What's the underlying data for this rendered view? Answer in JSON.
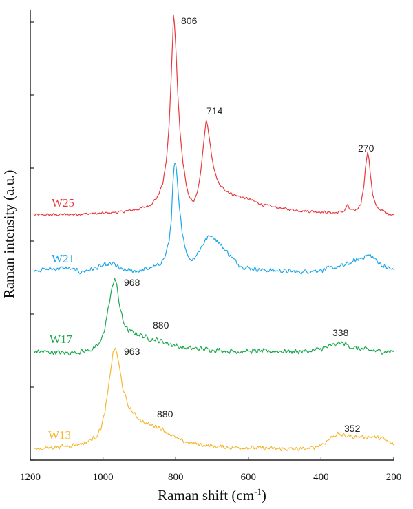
{
  "chart_data": {
    "type": "line",
    "title": "",
    "xlabel_main": "Raman shift (cm",
    "xlabel_sup": "-1",
    "xlabel_close": ")",
    "ylabel": "Raman intensity (a.u.)",
    "xlim": [
      1200,
      200
    ],
    "x_reversed": true,
    "x_ticks": [
      1200,
      1000,
      800,
      600,
      400,
      200
    ],
    "y_ticks_count": 6,
    "grid": false,
    "series": [
      {
        "name": "W25",
        "color": "#e8393f",
        "noise": 0.008,
        "points": [
          [
            1190,
            0.0
          ],
          [
            1100,
            0.002
          ],
          [
            1000,
            0.008
          ],
          [
            950,
            0.015
          ],
          [
            900,
            0.03
          ],
          [
            870,
            0.05
          ],
          [
            850,
            0.09
          ],
          [
            835,
            0.16
          ],
          [
            825,
            0.28
          ],
          [
            818,
            0.45
          ],
          [
            812,
            0.7
          ],
          [
            808,
            0.9
          ],
          [
            806,
            1.0
          ],
          [
            803,
            0.96
          ],
          [
            799,
            0.82
          ],
          [
            794,
            0.6
          ],
          [
            788,
            0.42
          ],
          [
            780,
            0.26
          ],
          [
            770,
            0.14
          ],
          [
            760,
            0.08
          ],
          [
            750,
            0.07
          ],
          [
            740,
            0.11
          ],
          [
            732,
            0.2
          ],
          [
            725,
            0.32
          ],
          [
            719,
            0.43
          ],
          [
            716,
            0.47
          ],
          [
            713,
            0.46
          ],
          [
            708,
            0.39
          ],
          [
            700,
            0.28
          ],
          [
            690,
            0.2
          ],
          [
            680,
            0.15
          ],
          [
            660,
            0.12
          ],
          [
            640,
            0.1
          ],
          [
            620,
            0.09
          ],
          [
            600,
            0.08
          ],
          [
            560,
            0.05
          ],
          [
            500,
            0.03
          ],
          [
            450,
            0.02
          ],
          [
            400,
            0.015
          ],
          [
            360,
            0.01
          ],
          [
            335,
            0.02
          ],
          [
            328,
            0.05
          ],
          [
            322,
            0.03
          ],
          [
            310,
            0.02
          ],
          [
            300,
            0.03
          ],
          [
            290,
            0.06
          ],
          [
            282,
            0.15
          ],
          [
            277,
            0.25
          ],
          [
            272,
            0.31
          ],
          [
            269,
            0.3
          ],
          [
            264,
            0.2
          ],
          [
            258,
            0.1
          ],
          [
            250,
            0.05
          ],
          [
            240,
            0.03
          ],
          [
            220,
            0.01
          ],
          [
            200,
            0.0
          ]
        ],
        "peaks": [
          806,
          714,
          270
        ]
      },
      {
        "name": "W21",
        "color": "#1ba7e8",
        "noise": 0.014,
        "points": [
          [
            1190,
            0.0
          ],
          [
            1100,
            0.01
          ],
          [
            1060,
            -0.01
          ],
          [
            1000,
            0.02
          ],
          [
            970,
            0.03
          ],
          [
            950,
            0.0
          ],
          [
            900,
            -0.005
          ],
          [
            850,
            0.02
          ],
          [
            830,
            0.06
          ],
          [
            818,
            0.14
          ],
          [
            812,
            0.25
          ],
          [
            808,
            0.4
          ],
          [
            804,
            0.5
          ],
          [
            801,
            0.52
          ],
          [
            797,
            0.46
          ],
          [
            790,
            0.3
          ],
          [
            783,
            0.2
          ],
          [
            775,
            0.12
          ],
          [
            765,
            0.06
          ],
          [
            755,
            0.05
          ],
          [
            740,
            0.08
          ],
          [
            720,
            0.14
          ],
          [
            705,
            0.17
          ],
          [
            695,
            0.16
          ],
          [
            680,
            0.13
          ],
          [
            660,
            0.09
          ],
          [
            640,
            0.05
          ],
          [
            620,
            0.02
          ],
          [
            600,
            0.01
          ],
          [
            560,
            0.0
          ],
          [
            500,
            -0.005
          ],
          [
            460,
            -0.01
          ],
          [
            400,
            0.0
          ],
          [
            340,
            0.02
          ],
          [
            300,
            0.05
          ],
          [
            275,
            0.07
          ],
          [
            265,
            0.07
          ],
          [
            250,
            0.05
          ],
          [
            230,
            0.02
          ],
          [
            200,
            0.0
          ]
        ],
        "peaks": []
      },
      {
        "name": "W17",
        "color": "#1ba84d",
        "noise": 0.009,
        "points": [
          [
            1190,
            0.0
          ],
          [
            1100,
            -0.005
          ],
          [
            1050,
            0.0
          ],
          [
            1020,
            0.01
          ],
          [
            1005,
            0.03
          ],
          [
            995,
            0.07
          ],
          [
            985,
            0.13
          ],
          [
            978,
            0.17
          ],
          [
            972,
            0.2
          ],
          [
            968,
            0.22
          ],
          [
            963,
            0.2
          ],
          [
            955,
            0.14
          ],
          [
            945,
            0.09
          ],
          [
            930,
            0.06
          ],
          [
            900,
            0.05
          ],
          [
            880,
            0.04
          ],
          [
            860,
            0.035
          ],
          [
            840,
            0.03
          ],
          [
            810,
            0.02
          ],
          [
            780,
            0.01
          ],
          [
            740,
            0.008
          ],
          [
            700,
            0.005
          ],
          [
            650,
            0.0
          ],
          [
            600,
            0.0
          ],
          [
            500,
            0.0
          ],
          [
            430,
            0.0
          ],
          [
            390,
            0.01
          ],
          [
            360,
            0.02
          ],
          [
            345,
            0.025
          ],
          [
            330,
            0.02
          ],
          [
            310,
            0.01
          ],
          [
            280,
            0.005
          ],
          [
            240,
            0.0
          ],
          [
            200,
            0.0
          ]
        ],
        "peaks": [
          968,
          880,
          338
        ]
      },
      {
        "name": "W13",
        "color": "#f5b731",
        "noise": 0.008,
        "points": [
          [
            1190,
            0.0
          ],
          [
            1100,
            0.01
          ],
          [
            1050,
            0.02
          ],
          [
            1020,
            0.04
          ],
          [
            1005,
            0.07
          ],
          [
            995,
            0.12
          ],
          [
            985,
            0.2
          ],
          [
            978,
            0.27
          ],
          [
            972,
            0.32
          ],
          [
            967,
            0.33
          ],
          [
            962,
            0.32
          ],
          [
            955,
            0.27
          ],
          [
            945,
            0.2
          ],
          [
            930,
            0.14
          ],
          [
            910,
            0.11
          ],
          [
            890,
            0.09
          ],
          [
            870,
            0.08
          ],
          [
            850,
            0.075
          ],
          [
            830,
            0.06
          ],
          [
            810,
            0.045
          ],
          [
            790,
            0.03
          ],
          [
            760,
            0.02
          ],
          [
            700,
            0.01
          ],
          [
            650,
            0.005
          ],
          [
            600,
            0.005
          ],
          [
            500,
            0.0
          ],
          [
            450,
            0.0
          ],
          [
            420,
            0.005
          ],
          [
            390,
            0.02
          ],
          [
            370,
            0.04
          ],
          [
            355,
            0.05
          ],
          [
            340,
            0.045
          ],
          [
            300,
            0.04
          ],
          [
            260,
            0.04
          ],
          [
            230,
            0.035
          ],
          [
            210,
            0.02
          ],
          [
            200,
            0.015
          ]
        ],
        "peaks": [
          963,
          880,
          352
        ]
      }
    ],
    "series_labels": [
      "W25",
      "W21",
      "W17",
      "W13"
    ],
    "peak_labels": [
      "806",
      "714",
      "270",
      "968",
      "880",
      "338",
      "963",
      "880",
      "352"
    ]
  }
}
